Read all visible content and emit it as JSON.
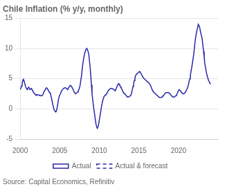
{
  "chart_data": {
    "type": "line",
    "title": "Chile Inflation (% y/y, monthly)",
    "annotations": [
      "Source: Capital Economics, Refinitiv"
    ],
    "xlim": [
      2000,
      2025
    ],
    "xticks": [
      2000,
      2005,
      2010,
      2015,
      2020
    ],
    "ylim": [
      -5,
      15
    ],
    "yticks": [
      -5,
      0,
      5,
      10,
      15
    ],
    "grid": "y",
    "legend": "bottom",
    "series": [
      {
        "name": "Actual",
        "color": "#2828a8",
        "line_style": "solid",
        "x": [
          2000.0,
          2000.08,
          2000.17,
          2000.25,
          2000.33,
          2000.42,
          2000.5,
          2000.58,
          2000.67,
          2000.75,
          2000.83,
          2000.92,
          2001.0,
          2001.08,
          2001.17,
          2001.25,
          2001.33,
          2001.42,
          2001.5,
          2001.58,
          2001.67,
          2001.75,
          2001.83,
          2001.92,
          2002.0,
          2002.08,
          2002.17,
          2002.25,
          2002.33,
          2002.42,
          2002.5,
          2002.58,
          2002.67,
          2002.75,
          2002.83,
          2002.92,
          2003.0,
          2003.08,
          2003.17,
          2003.25,
          2003.33,
          2003.42,
          2003.5,
          2003.58,
          2003.67,
          2003.75,
          2003.83,
          2003.92,
          2004.0,
          2004.08,
          2004.17,
          2004.25,
          2004.33,
          2004.42,
          2004.5,
          2004.58,
          2004.67,
          2004.75,
          2004.83,
          2004.92,
          2005.0,
          2005.08,
          2005.17,
          2005.25,
          2005.33,
          2005.42,
          2005.5,
          2005.58,
          2005.67,
          2005.75,
          2005.83,
          2005.92,
          2006.0,
          2006.08,
          2006.17,
          2006.25,
          2006.33,
          2006.42,
          2006.5,
          2006.58,
          2006.67,
          2006.75,
          2006.83,
          2006.92,
          2007.0,
          2007.08,
          2007.17,
          2007.25,
          2007.33,
          2007.42,
          2007.5,
          2007.58,
          2007.67,
          2007.75,
          2007.83,
          2007.92,
          2008.0,
          2008.08,
          2008.17,
          2008.25,
          2008.33,
          2008.42,
          2008.5,
          2008.58,
          2008.67,
          2008.75,
          2008.83,
          2008.92,
          2009.0,
          2009.08,
          2009.17,
          2009.25,
          2009.33,
          2009.42,
          2009.5,
          2009.58,
          2009.67,
          2009.75,
          2009.83,
          2009.92,
          2010.0,
          2010.08,
          2010.17,
          2010.25,
          2010.33,
          2010.42,
          2010.5,
          2010.58,
          2010.67,
          2010.75,
          2010.83,
          2010.92,
          2011.0,
          2011.08,
          2011.17,
          2011.25,
          2011.33,
          2011.42,
          2011.5,
          2011.58,
          2011.67,
          2011.75,
          2011.83,
          2011.92,
          2012.0,
          2012.08,
          2012.17,
          2012.25,
          2012.33,
          2012.42,
          2012.5,
          2012.58,
          2012.67,
          2012.75,
          2012.83,
          2012.92,
          2013.0,
          2013.08,
          2013.17,
          2013.25,
          2013.33,
          2013.42,
          2013.5,
          2013.58,
          2013.67,
          2013.75,
          2013.83,
          2013.92,
          2014.0,
          2014.08,
          2014.17,
          2014.25,
          2014.33,
          2014.42,
          2014.5,
          2014.58,
          2014.67,
          2014.75,
          2014.83,
          2014.92,
          2015.0,
          2015.08,
          2015.17,
          2015.25,
          2015.33,
          2015.42,
          2015.5,
          2015.58,
          2015.67,
          2015.75,
          2015.83,
          2015.92,
          2016.0,
          2016.08,
          2016.17,
          2016.25,
          2016.33,
          2016.42,
          2016.5,
          2016.58,
          2016.67,
          2016.75,
          2016.83,
          2016.92,
          2017.0,
          2017.08,
          2017.17,
          2017.25,
          2017.33,
          2017.42,
          2017.5,
          2017.58,
          2017.67,
          2017.75,
          2017.83,
          2017.92,
          2018.0,
          2018.08,
          2018.17,
          2018.25,
          2018.33,
          2018.42,
          2018.5,
          2018.58,
          2018.67,
          2018.75,
          2018.83,
          2018.92,
          2019.0,
          2019.08,
          2019.17,
          2019.25,
          2019.33,
          2019.42,
          2019.5,
          2019.58,
          2019.67,
          2019.75,
          2019.83,
          2019.92,
          2020.0,
          2020.08,
          2020.17,
          2020.25,
          2020.33,
          2020.42,
          2020.5,
          2020.58,
          2020.67,
          2020.75,
          2020.83,
          2020.92,
          2021.0,
          2021.08,
          2021.17,
          2021.25,
          2021.33,
          2021.42,
          2021.5,
          2021.58,
          2021.67,
          2021.75,
          2021.83,
          2021.92,
          2022.0,
          2022.08,
          2022.17,
          2022.25,
          2022.33,
          2022.42,
          2022.5,
          2022.58,
          2022.67,
          2022.75,
          2022.83,
          2022.92,
          2023.0,
          2023.08,
          2023.17,
          2023.25,
          2023.33,
          2023.42,
          2023.5,
          2023.58,
          2023.67,
          2023.75,
          2023.83
        ],
        "values": [
          3.2,
          3.4,
          3.8,
          4.2,
          4.7,
          4.9,
          4.6,
          4.2,
          3.8,
          3.5,
          3.3,
          3.2,
          3.5,
          3.6,
          3.4,
          3.2,
          3.3,
          3.4,
          3.2,
          3.0,
          2.8,
          2.6,
          2.5,
          2.4,
          2.3,
          2.4,
          2.3,
          2.3,
          2.3,
          2.3,
          2.2,
          2.2,
          2.2,
          2.2,
          2.3,
          2.5,
          2.8,
          3.0,
          3.2,
          3.4,
          3.5,
          3.4,
          3.2,
          3.0,
          2.8,
          2.7,
          2.5,
          2.0,
          1.5,
          1.0,
          0.5,
          0.0,
          -0.2,
          -0.4,
          -0.5,
          -0.3,
          0.2,
          0.8,
          1.5,
          2.0,
          2.3,
          2.5,
          2.8,
          3.0,
          3.2,
          3.3,
          3.4,
          3.4,
          3.5,
          3.5,
          3.4,
          3.3,
          3.2,
          3.4,
          3.6,
          3.8,
          3.9,
          3.8,
          3.7,
          3.5,
          3.3,
          3.0,
          2.8,
          2.6,
          2.5,
          2.6,
          2.7,
          2.8,
          3.0,
          3.2,
          3.5,
          4.0,
          4.8,
          5.5,
          6.5,
          7.5,
          8.2,
          8.8,
          9.3,
          9.6,
          9.9,
          10.0,
          9.8,
          9.5,
          9.0,
          8.0,
          7.0,
          5.5,
          4.0,
          2.5,
          1.5,
          0.5,
          -0.2,
          -1.0,
          -1.8,
          -2.5,
          -3.0,
          -3.2,
          -3.0,
          -2.5,
          -1.8,
          -1.2,
          -0.5,
          0.2,
          0.8,
          1.3,
          1.7,
          2.0,
          2.2,
          2.3,
          2.4,
          2.5,
          2.7,
          2.9,
          3.1,
          3.2,
          3.3,
          3.4,
          3.4,
          3.4,
          3.3,
          3.3,
          3.2,
          3.1,
          3.0,
          3.2,
          3.5,
          3.8,
          4.0,
          4.2,
          4.1,
          3.9,
          3.7,
          3.5,
          3.3,
          3.1,
          2.8,
          2.6,
          2.5,
          2.5,
          2.3,
          2.2,
          2.0,
          2.0,
          2.0,
          2.0,
          2.1,
          2.2,
          2.3,
          2.7,
          3.2,
          3.7,
          4.2,
          4.7,
          5.2,
          5.5,
          5.7,
          5.8,
          5.9,
          6.0,
          6.1,
          6.2,
          6.1,
          5.9,
          5.7,
          5.5,
          5.3,
          5.1,
          5.0,
          4.9,
          4.8,
          4.7,
          4.6,
          4.5,
          4.4,
          4.3,
          4.2,
          4.0,
          3.8,
          3.5,
          3.2,
          3.0,
          2.8,
          2.7,
          2.6,
          2.5,
          2.4,
          2.3,
          2.2,
          2.1,
          2.0,
          1.9,
          1.9,
          1.9,
          1.9,
          2.0,
          2.1,
          2.2,
          2.3,
          2.5,
          2.6,
          2.7,
          2.7,
          2.7,
          2.7,
          2.7,
          2.6,
          2.5,
          2.4,
          2.2,
          2.1,
          2.0,
          2.0,
          2.0,
          2.0,
          2.1,
          2.2,
          2.3,
          2.5,
          2.8,
          3.0,
          3.2,
          3.1,
          3.0,
          2.8,
          2.7,
          2.6,
          2.5,
          2.5,
          2.6,
          2.7,
          2.9,
          3.1,
          3.3,
          3.6,
          4.0,
          4.5,
          5.0,
          5.5,
          6.2,
          6.8,
          7.5,
          8.2,
          9.0,
          10.0,
          11.0,
          11.8,
          12.5,
          13.0,
          13.5,
          14.0,
          13.8,
          13.5,
          13.0,
          12.5,
          12.0,
          11.5,
          10.5,
          9.5,
          8.5,
          7.5,
          6.8,
          6.2,
          5.7,
          5.3,
          4.9,
          4.6
        ]
      },
      {
        "name": "Actual & forecast",
        "color": "#2828a8",
        "line_style": "dashed",
        "x": [
          2023.83,
          2023.92,
          2024.0,
          2024.08,
          2024.17,
          2024.25
        ],
        "values": [
          4.6,
          4.4,
          4.2,
          4.1,
          4.0,
          3.9
        ]
      }
    ]
  }
}
